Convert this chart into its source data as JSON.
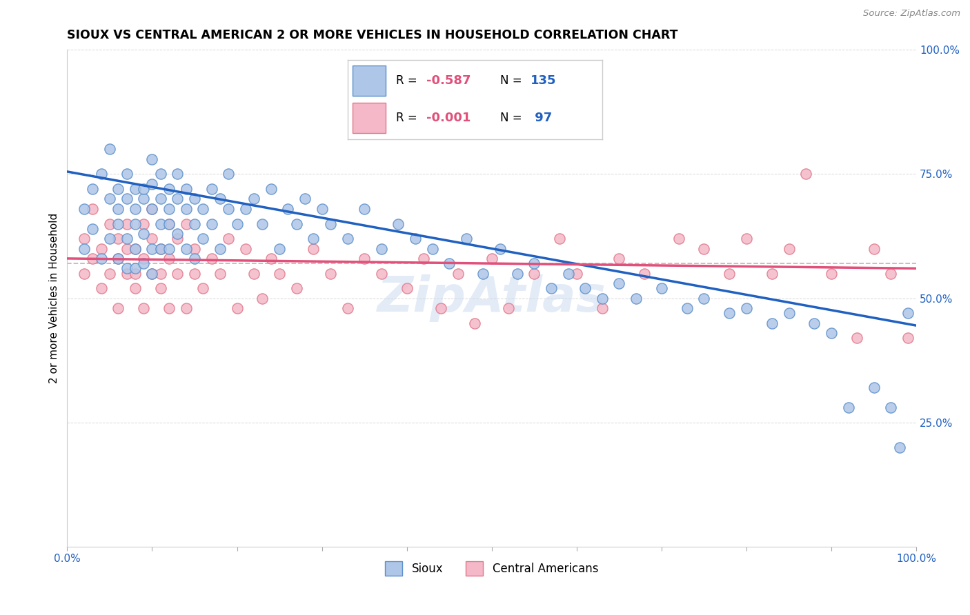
{
  "title": "SIOUX VS CENTRAL AMERICAN 2 OR MORE VEHICLES IN HOUSEHOLD CORRELATION CHART",
  "source": "Source: ZipAtlas.com",
  "ylabel": "2 or more Vehicles in Household",
  "xlim": [
    0,
    1
  ],
  "ylim": [
    0,
    1
  ],
  "ytick_vals": [
    0.0,
    0.25,
    0.5,
    0.75,
    1.0
  ],
  "ytick_labels": [
    "",
    "25.0%",
    "50.0%",
    "75.0%",
    "100.0%"
  ],
  "xtick_vals": [
    0.0,
    0.1,
    0.2,
    0.3,
    0.4,
    0.5,
    0.6,
    0.7,
    0.8,
    0.9,
    1.0
  ],
  "xtick_labels": [
    "0.0%",
    "",
    "",
    "",
    "",
    "",
    "",
    "",
    "",
    "",
    "100.0%"
  ],
  "sioux_color": "#aec6e8",
  "sioux_edge": "#5b8fc9",
  "central_color": "#f4b8c8",
  "central_edge": "#e0788a",
  "trend_sioux_color": "#2060c0",
  "trend_central_color": "#e0507a",
  "dashed_line_color": "#e0a0b0",
  "R_sioux": -0.587,
  "N_sioux": 135,
  "R_central": -0.001,
  "N_central": 97,
  "sioux_trend_x0": 0.0,
  "sioux_trend_y0": 0.755,
  "sioux_trend_x1": 1.0,
  "sioux_trend_y1": 0.445,
  "central_trend_y": 0.57,
  "dashed_line_y": 0.57,
  "background_color": "#ffffff",
  "title_fontsize": 12.5,
  "axis_label_fontsize": 11,
  "tick_fontsize": 11,
  "legend_fontsize": 12,
  "sioux_x": [
    0.02,
    0.02,
    0.03,
    0.03,
    0.04,
    0.04,
    0.05,
    0.05,
    0.05,
    0.06,
    0.06,
    0.06,
    0.06,
    0.07,
    0.07,
    0.07,
    0.07,
    0.08,
    0.08,
    0.08,
    0.08,
    0.08,
    0.09,
    0.09,
    0.09,
    0.09,
    0.1,
    0.1,
    0.1,
    0.1,
    0.1,
    0.11,
    0.11,
    0.11,
    0.11,
    0.12,
    0.12,
    0.12,
    0.12,
    0.13,
    0.13,
    0.13,
    0.14,
    0.14,
    0.14,
    0.15,
    0.15,
    0.15,
    0.16,
    0.16,
    0.17,
    0.17,
    0.18,
    0.18,
    0.19,
    0.19,
    0.2,
    0.21,
    0.22,
    0.23,
    0.24,
    0.25,
    0.26,
    0.27,
    0.28,
    0.29,
    0.3,
    0.31,
    0.33,
    0.35,
    0.37,
    0.39,
    0.41,
    0.43,
    0.45,
    0.47,
    0.49,
    0.51,
    0.53,
    0.55,
    0.57,
    0.59,
    0.61,
    0.63,
    0.65,
    0.67,
    0.7,
    0.73,
    0.75,
    0.78,
    0.8,
    0.83,
    0.85,
    0.88,
    0.9,
    0.92,
    0.95,
    0.97,
    0.98,
    0.99
  ],
  "sioux_y": [
    0.68,
    0.6,
    0.72,
    0.64,
    0.75,
    0.58,
    0.7,
    0.62,
    0.8,
    0.65,
    0.72,
    0.58,
    0.68,
    0.62,
    0.7,
    0.56,
    0.75,
    0.6,
    0.68,
    0.72,
    0.56,
    0.65,
    0.7,
    0.63,
    0.57,
    0.72,
    0.68,
    0.73,
    0.6,
    0.78,
    0.55,
    0.7,
    0.65,
    0.6,
    0.75,
    0.68,
    0.72,
    0.6,
    0.65,
    0.7,
    0.63,
    0.75,
    0.68,
    0.6,
    0.72,
    0.65,
    0.7,
    0.58,
    0.68,
    0.62,
    0.72,
    0.65,
    0.7,
    0.6,
    0.68,
    0.75,
    0.65,
    0.68,
    0.7,
    0.65,
    0.72,
    0.6,
    0.68,
    0.65,
    0.7,
    0.62,
    0.68,
    0.65,
    0.62,
    0.68,
    0.6,
    0.65,
    0.62,
    0.6,
    0.57,
    0.62,
    0.55,
    0.6,
    0.55,
    0.57,
    0.52,
    0.55,
    0.52,
    0.5,
    0.53,
    0.5,
    0.52,
    0.48,
    0.5,
    0.47,
    0.48,
    0.45,
    0.47,
    0.45,
    0.43,
    0.28,
    0.32,
    0.28,
    0.2,
    0.47
  ],
  "central_x": [
    0.02,
    0.02,
    0.03,
    0.03,
    0.04,
    0.04,
    0.05,
    0.05,
    0.06,
    0.06,
    0.06,
    0.07,
    0.07,
    0.07,
    0.08,
    0.08,
    0.08,
    0.09,
    0.09,
    0.09,
    0.1,
    0.1,
    0.1,
    0.11,
    0.11,
    0.11,
    0.12,
    0.12,
    0.12,
    0.13,
    0.13,
    0.14,
    0.14,
    0.15,
    0.15,
    0.16,
    0.17,
    0.18,
    0.19,
    0.2,
    0.21,
    0.22,
    0.23,
    0.24,
    0.25,
    0.27,
    0.29,
    0.31,
    0.33,
    0.35,
    0.37,
    0.4,
    0.42,
    0.44,
    0.46,
    0.48,
    0.5,
    0.52,
    0.55,
    0.58,
    0.6,
    0.63,
    0.65,
    0.68,
    0.72,
    0.75,
    0.78,
    0.8,
    0.83,
    0.85,
    0.87,
    0.9,
    0.93,
    0.95,
    0.97,
    0.99
  ],
  "central_y": [
    0.55,
    0.62,
    0.58,
    0.68,
    0.52,
    0.6,
    0.65,
    0.55,
    0.58,
    0.62,
    0.48,
    0.6,
    0.55,
    0.65,
    0.52,
    0.6,
    0.55,
    0.65,
    0.48,
    0.58,
    0.62,
    0.55,
    0.68,
    0.52,
    0.6,
    0.55,
    0.65,
    0.48,
    0.58,
    0.55,
    0.62,
    0.65,
    0.48,
    0.6,
    0.55,
    0.52,
    0.58,
    0.55,
    0.62,
    0.48,
    0.6,
    0.55,
    0.5,
    0.58,
    0.55,
    0.52,
    0.6,
    0.55,
    0.48,
    0.58,
    0.55,
    0.52,
    0.58,
    0.48,
    0.55,
    0.45,
    0.58,
    0.48,
    0.55,
    0.62,
    0.55,
    0.48,
    0.58,
    0.55,
    0.62,
    0.6,
    0.55,
    0.62,
    0.55,
    0.6,
    0.75,
    0.55,
    0.42,
    0.6,
    0.55,
    0.42
  ],
  "watermark_text": "ZipAtlas",
  "watermark_color": "#c8d8f0",
  "watermark_alpha": 0.5
}
